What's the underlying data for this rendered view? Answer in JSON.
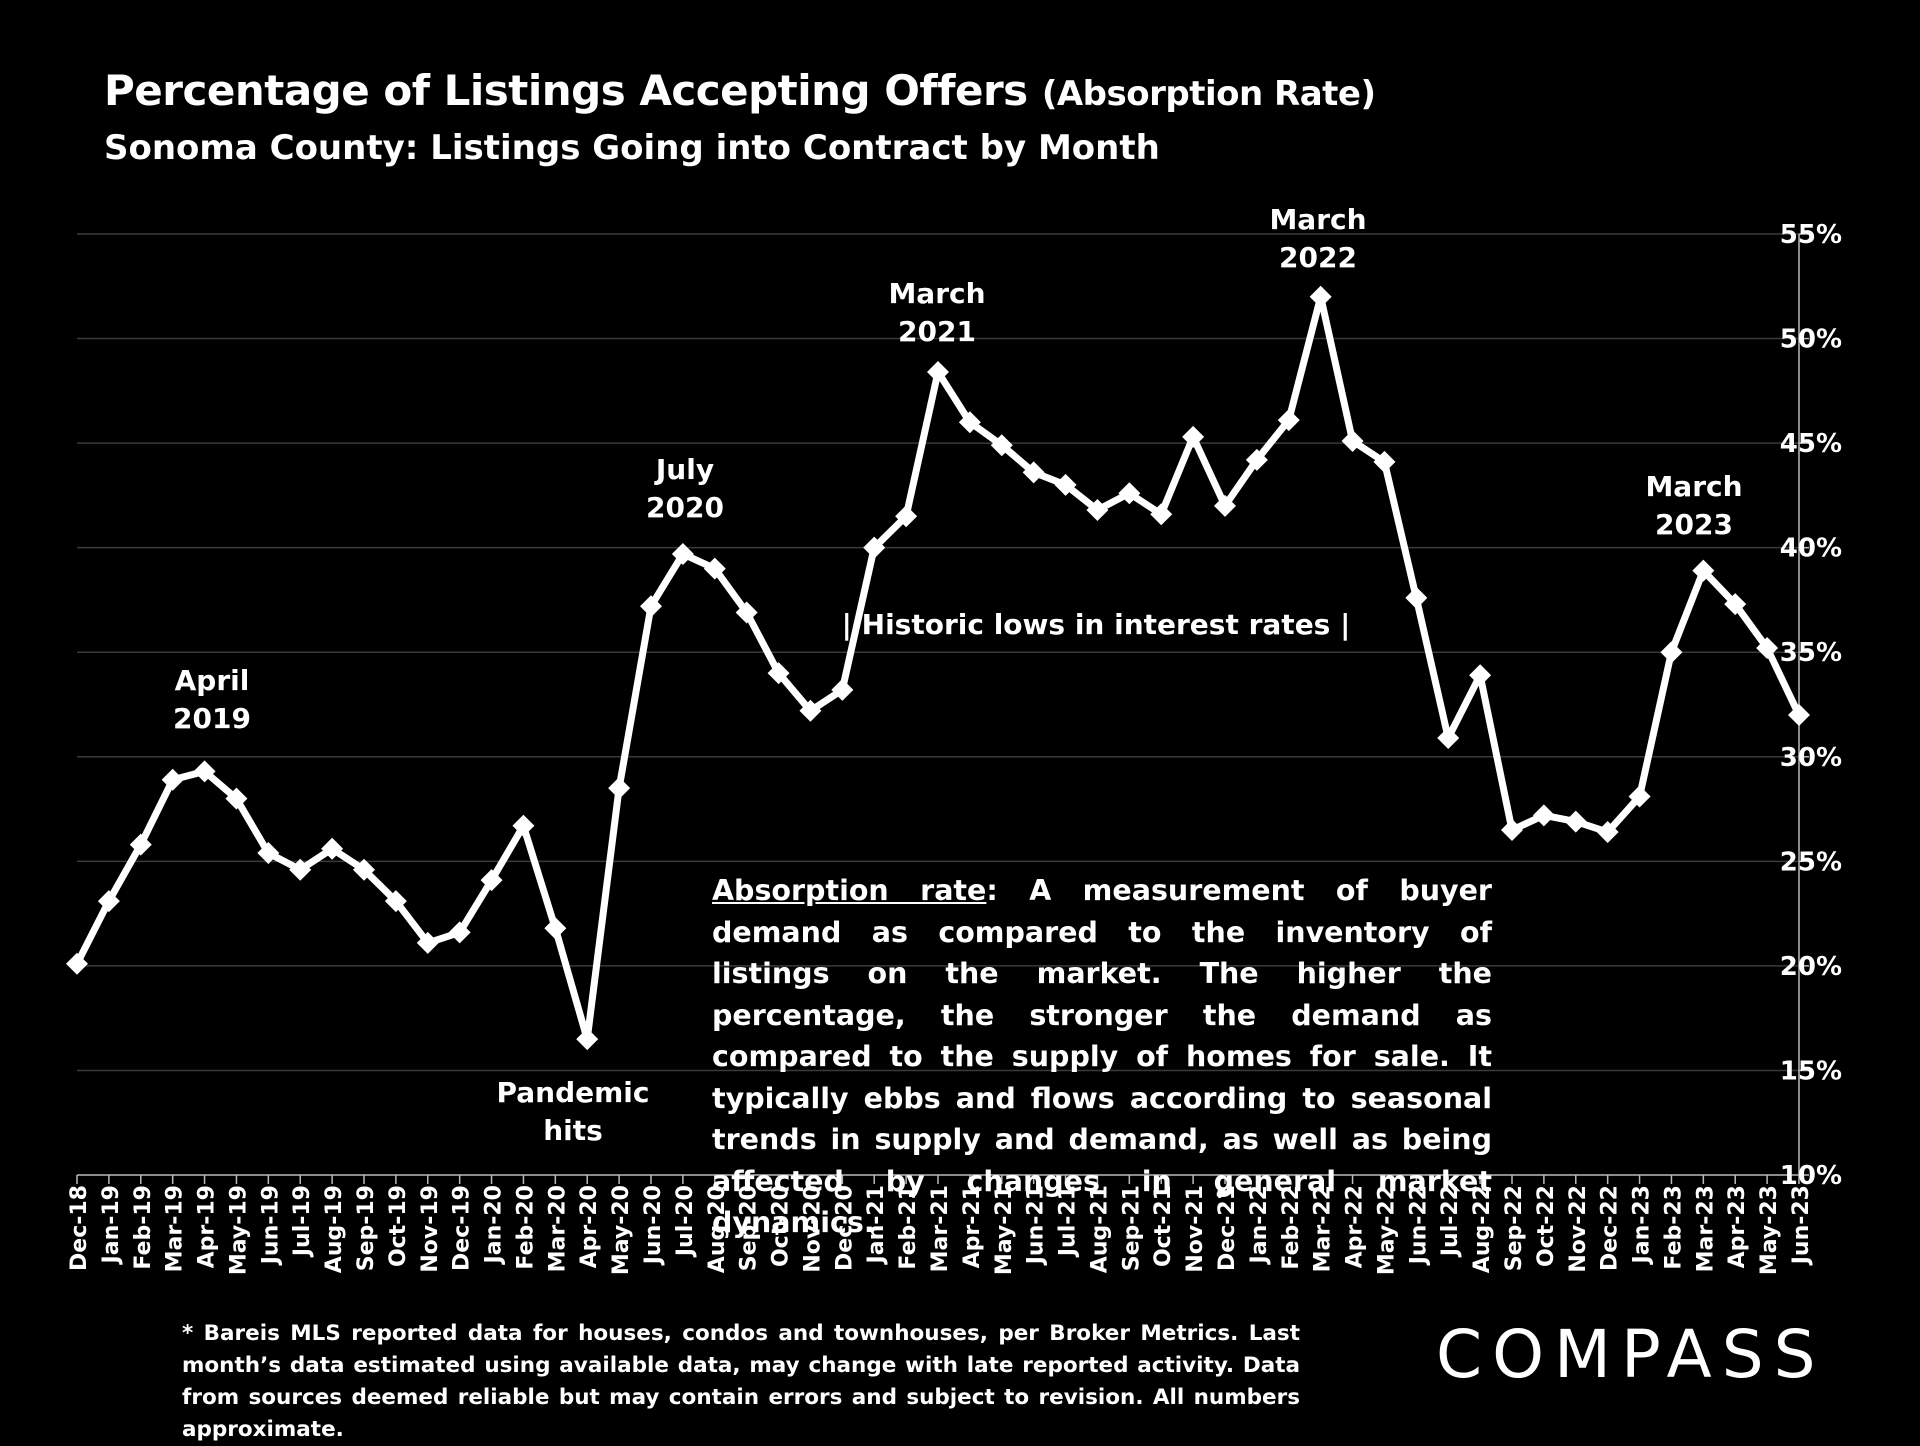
{
  "header": {
    "title": "Percentage of Listings Accepting Offers",
    "title_suffix": "(Absorption Rate)",
    "subtitle": "Sonoma County: Listings Going into Contract by Month"
  },
  "chart_data": {
    "type": "line",
    "title": "Percentage of Listings Accepting Offers (Absorption Rate)",
    "subtitle": "Sonoma County: Listings Going into Contract by Month",
    "xlabel": "",
    "ylabel": "",
    "ylim": [
      10,
      55
    ],
    "y_ticks": [
      10,
      15,
      20,
      25,
      30,
      35,
      40,
      45,
      50,
      55
    ],
    "y_tick_labels": [
      "10%",
      "15%",
      "20%",
      "25%",
      "30%",
      "35%",
      "40%",
      "45%",
      "50%",
      "55%"
    ],
    "y_axis_side": "right",
    "grid": true,
    "categories": [
      "Dec-18",
      "Jan-19",
      "Feb-19",
      "Mar-19",
      "Apr-19",
      "May-19",
      "Jun-19",
      "Jul-19",
      "Aug-19",
      "Sep-19",
      "Oct-19",
      "Nov-19",
      "Dec-19",
      "Jan-20",
      "Feb-20",
      "Mar-20",
      "Apr-20",
      "May-20",
      "Jun-20",
      "Jul-20",
      "Aug-20",
      "Sep-20",
      "Oct-20",
      "Nov-20",
      "Dec-20",
      "Jan-21",
      "Feb-21",
      "Mar-21",
      "Apr-21",
      "May-21",
      "Jun-21",
      "Jul-21",
      "Aug-21",
      "Sep-21",
      "Oct-21",
      "Nov-21",
      "Dec-21",
      "Jan-22",
      "Feb-22",
      "Mar-22",
      "Apr-22",
      "May-22",
      "Jun-22",
      "Jul-22",
      "Aug-22",
      "Sep-22",
      "Oct-22",
      "Nov-22",
      "Dec-22",
      "Jan-23",
      "Feb-23",
      "Mar-23",
      "Apr-23",
      "May-23",
      "Jun-23"
    ],
    "series": [
      {
        "name": "Absorption Rate",
        "color": "#ffffff",
        "marker": "diamond",
        "values": [
          20.1,
          23.1,
          25.8,
          28.9,
          29.3,
          28.0,
          25.4,
          24.6,
          25.6,
          24.6,
          23.1,
          21.1,
          21.6,
          24.1,
          26.7,
          21.8,
          16.5,
          28.5,
          37.2,
          39.7,
          39.0,
          36.9,
          34.0,
          32.2,
          33.2,
          40.0,
          41.5,
          48.4,
          46.0,
          44.9,
          43.6,
          43.0,
          41.8,
          42.6,
          41.6,
          45.3,
          42.0,
          44.2,
          46.1,
          52.0,
          45.1,
          44.1,
          37.6,
          30.9,
          33.9,
          26.5,
          27.2,
          26.9,
          26.4,
          28.1,
          35.0,
          38.9,
          37.3,
          35.2,
          32.0
        ]
      }
    ],
    "annotations": [
      {
        "id": "april-2019",
        "text_line1": "April",
        "text_line2": "2019",
        "category": "Apr-19"
      },
      {
        "id": "pandemic",
        "text_line1": "Pandemic",
        "text_line2": "hits",
        "category": "Apr-20"
      },
      {
        "id": "july-2020",
        "text_line1": "July",
        "text_line2": "2020",
        "category": "Jul-20"
      },
      {
        "id": "march-2021",
        "text_line1": "March",
        "text_line2": "2021",
        "category": "Mar-21"
      },
      {
        "id": "march-2022",
        "text_line1": "March",
        "text_line2": "2022",
        "category": "Mar-22"
      },
      {
        "id": "march-2023",
        "text_line1": "March",
        "text_line2": "2023",
        "category": "Mar-23"
      },
      {
        "id": "interest-rates",
        "text_line1": "| Historic lows in interest rates |",
        "text_line2": ""
      }
    ]
  },
  "note": {
    "term": "Absorption rate",
    "text": ":  A measurement of buyer demand as compared to the inventory of listings on the market. The higher the percentage, the stronger the demand as compared to the supply of homes for sale. It typically ebbs and flows according to seasonal trends in supply and demand, as well as being affected by changes in general market dynamics."
  },
  "footnote": "* Bareis MLS reported data for houses, condos and townhouses, per Broker Metrics. Last month’s data estimated using available data, may change with late reported activity. Data from sources deemed reliable but may contain errors and subject to revision. All numbers approximate.",
  "brand": {
    "logo_text": "COMPASS"
  }
}
